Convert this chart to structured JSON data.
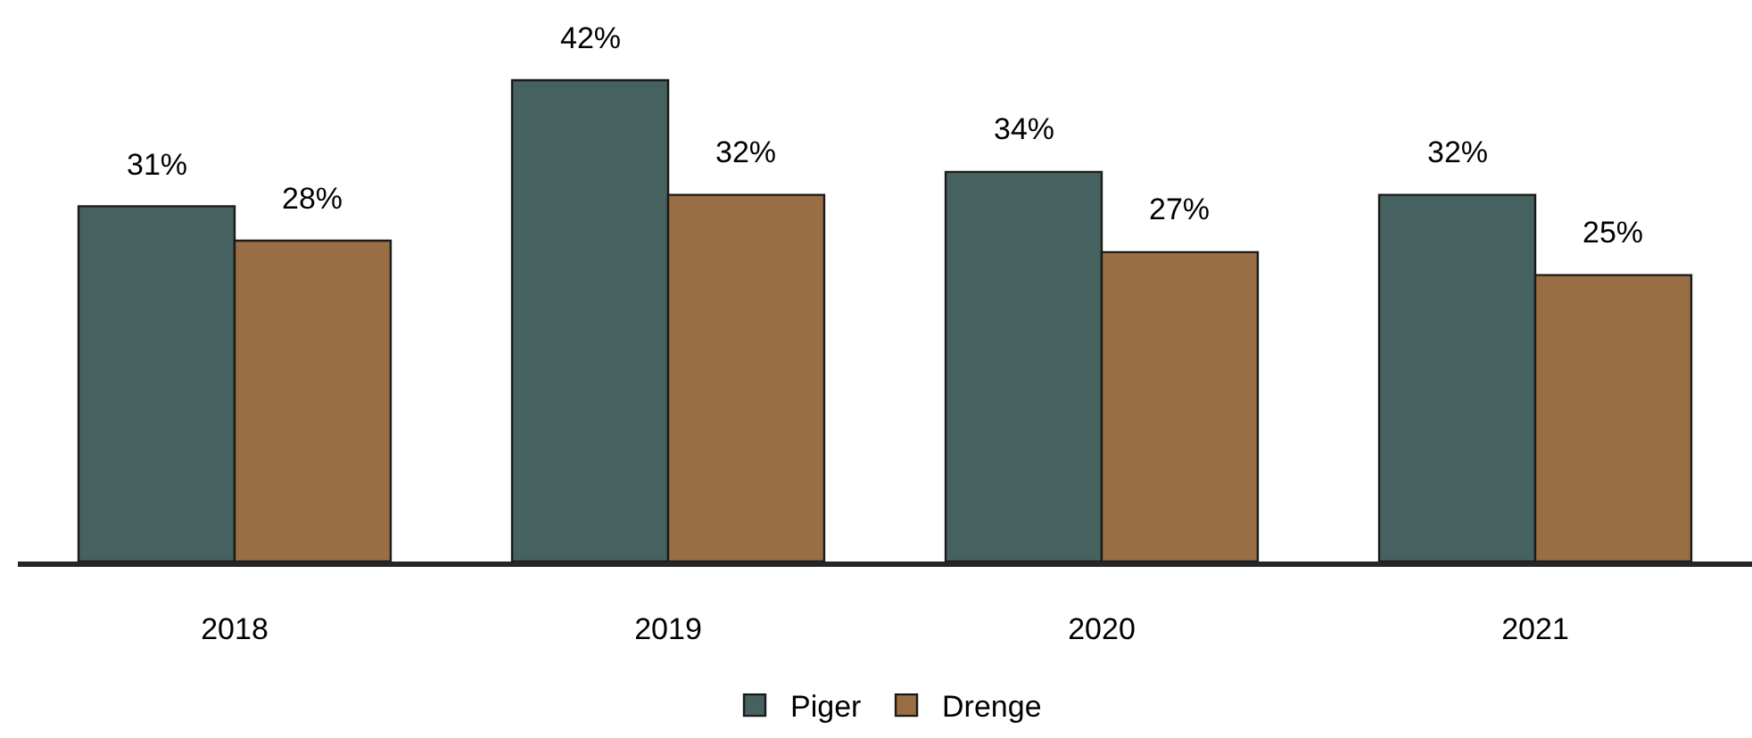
{
  "chart_data": {
    "type": "bar",
    "categories": [
      "2018",
      "2019",
      "2020",
      "2021"
    ],
    "series": [
      {
        "name": "Piger",
        "color": "#456260",
        "values": [
          31,
          42,
          34,
          32
        ],
        "value_labels": [
          "31%",
          "42%",
          "34%",
          "32%"
        ]
      },
      {
        "name": "Drenge",
        "color": "#996e44",
        "values": [
          28,
          32,
          27,
          25
        ],
        "value_labels": [
          "28%",
          "32%",
          "27%",
          "25%"
        ]
      }
    ],
    "ylim": [
      0,
      49
    ],
    "tick_labels": "x",
    "legend": "bottom"
  }
}
